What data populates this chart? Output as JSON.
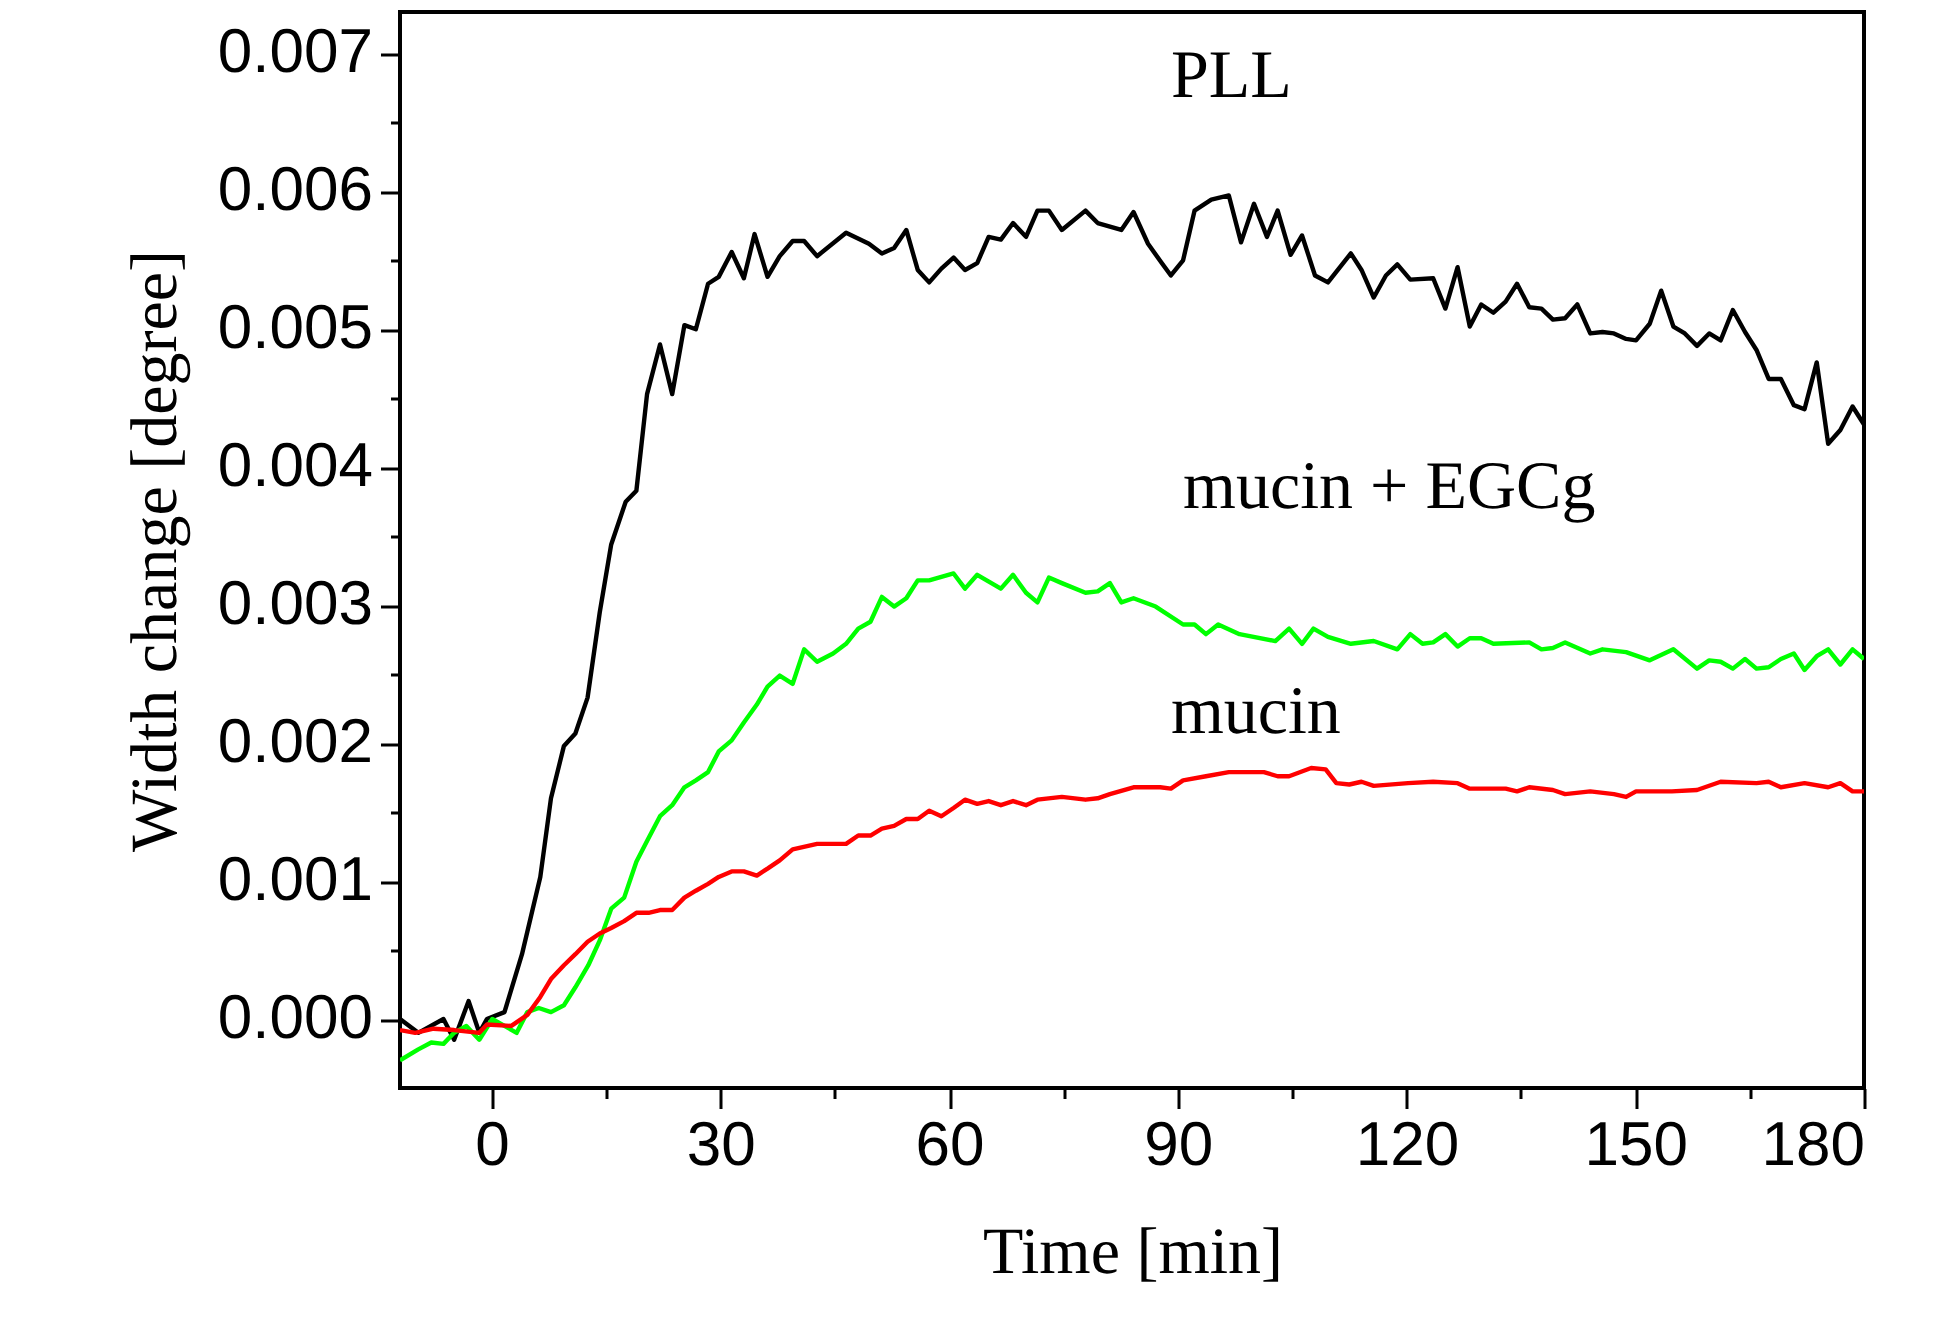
{
  "chart_data": {
    "type": "line",
    "xlabel": "Time [min]",
    "ylabel": "Width change [degree]",
    "xlim": [
      -12,
      180
    ],
    "ylim": [
      -0.0005,
      0.0073
    ],
    "xticks": [
      0,
      {
        "value": 15,
        "label": null
      },
      30,
      {
        "value": 45,
        "label": null
      },
      60,
      {
        "value": 75,
        "label": null
      },
      90,
      {
        "value": 105,
        "label": null
      },
      120,
      {
        "value": 135,
        "label": null
      },
      150,
      {
        "value": 165,
        "label": null
      },
      180
    ],
    "yticks": [
      {
        "value": 0,
        "label": "0.000"
      },
      {
        "value": 0.0005,
        "label": null
      },
      {
        "value": 0.001,
        "label": "0.001"
      },
      {
        "value": 0.0015,
        "label": null
      },
      {
        "value": 0.002,
        "label": "0.002"
      },
      {
        "value": 0.0025,
        "label": null
      },
      {
        "value": 0.003,
        "label": "0.003"
      },
      {
        "value": 0.0035,
        "label": null
      },
      {
        "value": 0.004,
        "label": "0.004"
      },
      {
        "value": 0.0045,
        "label": null
      },
      {
        "value": 0.005,
        "label": "0.005"
      },
      {
        "value": 0.0055,
        "label": null
      },
      {
        "value": 0.006,
        "label": "0.006"
      },
      {
        "value": 0.0065,
        "label": null
      },
      {
        "value": 0.007,
        "label": "0.007"
      }
    ],
    "grid": false,
    "legend": false,
    "marker": "none",
    "line_style": "solid",
    "series": [
      {
        "name": "PLL",
        "color": "#000000",
        "x": [
          -12,
          -9.6,
          -6.3,
          -4.9,
          -3.0,
          -1.6,
          -0.6,
          1.7,
          4.0,
          6.4,
          7.8,
          9.5,
          11,
          12.6,
          14.2,
          15.7,
          17.6,
          19,
          20.4,
          22.1,
          23.7,
          25.3,
          26.8,
          28.4,
          29.8,
          31.5,
          33.1,
          34.5,
          36.2,
          37.8,
          39.5,
          41.0,
          42.7,
          46.5,
          49.5,
          51.2,
          52.8,
          54.4,
          55.9,
          57.4,
          59.0,
          60.6,
          62.1,
          63.7,
          65.2,
          66.8,
          68.4,
          70.1,
          71.6,
          73.1,
          74.8,
          77.9,
          79.5,
          82.6,
          84.2,
          86.1,
          87.9,
          89.1,
          90.7,
          92.2,
          94.4,
          96.7,
          98.3,
          100,
          101.7,
          103.1,
          104.8,
          106.3,
          108,
          109.7,
          112.7,
          114.1,
          115.7,
          117.3,
          118.8,
          120.5,
          123.5,
          125.1,
          126.7,
          128.3,
          129.8,
          131.4,
          133,
          134.5,
          136.1,
          137.7,
          139.2,
          140.8,
          142.4,
          144.1,
          145.7,
          147.2,
          148.8,
          150.1,
          151.9,
          153.4,
          155,
          156.5,
          158.1,
          159.7,
          161.2,
          162.8,
          164.4,
          165.9,
          167.5,
          169.1,
          170.8,
          172.2,
          173.8,
          175.3,
          176.9,
          178.5,
          180
        ],
        "values": [
          0.0,
          -0.0001,
          0.0,
          -0.00015,
          0.00013,
          -0.0001,
          0.0,
          5e-05,
          0.00047,
          0.00103,
          0.0016,
          0.00198,
          0.00207,
          0.00233,
          0.00295,
          0.00344,
          0.00375,
          0.00383,
          0.00453,
          0.00489,
          0.00453,
          0.00503,
          0.005,
          0.00533,
          0.00538,
          0.00556,
          0.00537,
          0.00569,
          0.00538,
          0.00553,
          0.00564,
          0.00564,
          0.00553,
          0.0057,
          0.00562,
          0.00555,
          0.00559,
          0.00572,
          0.00543,
          0.00534,
          0.00544,
          0.00552,
          0.00543,
          0.00548,
          0.00567,
          0.00565,
          0.00577,
          0.00567,
          0.00586,
          0.00586,
          0.00572,
          0.00586,
          0.00577,
          0.00572,
          0.00585,
          0.00562,
          0.00548,
          0.00539,
          0.0055,
          0.00586,
          0.00594,
          0.00597,
          0.00563,
          0.00591,
          0.00567,
          0.00586,
          0.00554,
          0.00568,
          0.00539,
          0.00534,
          0.00555,
          0.00543,
          0.00523,
          0.00539,
          0.00547,
          0.00536,
          0.00537,
          0.00515,
          0.00545,
          0.00502,
          0.00518,
          0.00512,
          0.0052,
          0.00533,
          0.00516,
          0.00515,
          0.00507,
          0.00508,
          0.00518,
          0.00497,
          0.00498,
          0.00497,
          0.00493,
          0.00492,
          0.00504,
          0.00528,
          0.00502,
          0.00497,
          0.00488,
          0.00497,
          0.00492,
          0.00514,
          0.00498,
          0.00485,
          0.00464,
          0.00464,
          0.00445,
          0.00442,
          0.00476,
          0.00417,
          0.00427,
          0.00444,
          0.00431
        ]
      },
      {
        "name": "mucin + EGCg",
        "color": "#00ff00",
        "x": [
          -12,
          -9.6,
          -7.9,
          -6.3,
          -4.9,
          -3.3,
          -1.6,
          0.1,
          1.7,
          3.3,
          4.7,
          6.2,
          7.8,
          9.5,
          11,
          12.7,
          14.2,
          15.7,
          17.4,
          19,
          20.4,
          22.1,
          23.7,
          25.3,
          26.8,
          28.4,
          29.8,
          31.5,
          33.1,
          34.8,
          36.2,
          37.8,
          39.5,
          41.0,
          42.7,
          44.8,
          46.5,
          48.1,
          49.7,
          51.2,
          52.8,
          54.4,
          55.9,
          57.4,
          60.6,
          62.1,
          63.7,
          66.8,
          68.4,
          70.1,
          71.6,
          73.1,
          74.8,
          77.9,
          79.5,
          81.1,
          82.6,
          84.2,
          87.1,
          90.7,
          92.2,
          93.7,
          95.3,
          98.1,
          102.8,
          104.6,
          106.3,
          107.8,
          109.7,
          112.7,
          115.7,
          118.8,
          120.5,
          122.1,
          123.5,
          125.1,
          126.7,
          128.3,
          129.8,
          131.4,
          136.1,
          137.7,
          139.2,
          140.8,
          144.1,
          145.7,
          148.8,
          151.9,
          155,
          158.1,
          159.7,
          161.2,
          162.8,
          164.4,
          165.9,
          167.5,
          169.1,
          170.8,
          172.2,
          173.8,
          175.3,
          176.9,
          178.5,
          180
        ],
        "values": [
          -0.0003,
          -0.00022,
          -0.00017,
          -0.00018,
          -0.0001,
          -5e-05,
          -0.00015,
          0.0,
          -5e-05,
          -0.0001,
          5e-05,
          8e-05,
          5e-05,
          0.0001,
          0.00023,
          0.00039,
          0.00057,
          0.0008,
          0.00088,
          0.00114,
          0.00129,
          0.00147,
          0.00155,
          0.00168,
          0.00173,
          0.00179,
          0.00194,
          0.00202,
          0.00215,
          0.00228,
          0.00241,
          0.00249,
          0.00243,
          0.00268,
          0.00259,
          0.00265,
          0.00272,
          0.00283,
          0.00288,
          0.00306,
          0.00299,
          0.00305,
          0.00318,
          0.00318,
          0.00323,
          0.00312,
          0.00322,
          0.00312,
          0.00322,
          0.00309,
          0.00302,
          0.0032,
          0.00316,
          0.00309,
          0.0031,
          0.00316,
          0.00302,
          0.00305,
          0.00299,
          0.00286,
          0.00286,
          0.00279,
          0.00286,
          0.00279,
          0.00274,
          0.00283,
          0.00272,
          0.00283,
          0.00277,
          0.00272,
          0.00274,
          0.00268,
          0.00279,
          0.00272,
          0.00273,
          0.00279,
          0.0027,
          0.00276,
          0.00276,
          0.00272,
          0.00273,
          0.00268,
          0.00269,
          0.00273,
          0.00265,
          0.00268,
          0.00266,
          0.0026,
          0.00268,
          0.00254,
          0.0026,
          0.00259,
          0.00254,
          0.00261,
          0.00254,
          0.00255,
          0.00261,
          0.00265,
          0.00253,
          0.00263,
          0.00268,
          0.00257,
          0.00268,
          0.00261
        ]
      },
      {
        "name": "mucin",
        "color": "#ff0000",
        "x": [
          -12,
          -10,
          -7.6,
          -4.9,
          -1.6,
          -0.6,
          2.6,
          4.7,
          6.4,
          7.8,
          9.5,
          11,
          12.6,
          14.2,
          15.7,
          17.4,
          19,
          20.6,
          22.1,
          23.7,
          25.3,
          26.8,
          28.4,
          29.8,
          31.5,
          33.1,
          34.8,
          36.2,
          37.8,
          39.5,
          42.7,
          46.5,
          48.1,
          49.7,
          51.2,
          52.8,
          54.4,
          55.9,
          57.4,
          59,
          60.6,
          62.1,
          63.7,
          65.2,
          66.8,
          68.4,
          70.1,
          71.6,
          74.8,
          77.9,
          79.5,
          81.1,
          84.2,
          87.7,
          89.1,
          90.7,
          93.7,
          96.7,
          101.3,
          103.1,
          104.6,
          107.5,
          109.4,
          110.8,
          112.5,
          114.1,
          115.7,
          120.2,
          123.5,
          126.7,
          128.3,
          133,
          134.5,
          136.1,
          139.2,
          140.8,
          144.1,
          147.2,
          148.8,
          150.1,
          154.8,
          158.1,
          161.2,
          165.9,
          167.5,
          169.1,
          172.2,
          175.3,
          176.9,
          178.5,
          180
        ],
        "values": [
          -8e-05,
          -0.0001,
          -7e-05,
          -8e-05,
          -0.0001,
          -4e-05,
          -5e-05,
          3e-05,
          0.00016,
          0.00029,
          0.00039,
          0.00047,
          0.00056,
          0.00062,
          0.00066,
          0.00071,
          0.00077,
          0.00077,
          0.00079,
          0.00079,
          0.00088,
          0.00093,
          0.00098,
          0.00103,
          0.00107,
          0.00107,
          0.00104,
          0.00109,
          0.00115,
          0.00123,
          0.00127,
          0.00127,
          0.00133,
          0.00133,
          0.00138,
          0.0014,
          0.00145,
          0.00145,
          0.00151,
          0.00147,
          0.00153,
          0.00159,
          0.00156,
          0.00158,
          0.00155,
          0.00158,
          0.00155,
          0.00159,
          0.00161,
          0.00159,
          0.0016,
          0.00163,
          0.00168,
          0.00168,
          0.00167,
          0.00173,
          0.00176,
          0.00179,
          0.00179,
          0.00176,
          0.00176,
          0.00182,
          0.00181,
          0.00171,
          0.0017,
          0.00172,
          0.00169,
          0.00171,
          0.00172,
          0.00171,
          0.00167,
          0.00167,
          0.00165,
          0.00168,
          0.00166,
          0.00163,
          0.00165,
          0.00163,
          0.00161,
          0.00165,
          0.00165,
          0.00166,
          0.00172,
          0.00171,
          0.00172,
          0.00168,
          0.00171,
          0.00168,
          0.00171,
          0.00165,
          0.00165
        ]
      }
    ]
  }
}
